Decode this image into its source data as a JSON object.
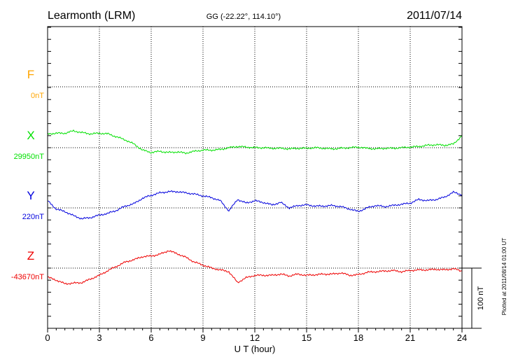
{
  "header": {
    "station": "Learmonth (LRM)",
    "coords": "GG (-22.22°, 114.10°)",
    "date": "2011/07/14"
  },
  "side_note": "Plotted at 2011/08/14 01:00 UT",
  "scale_label": "100 nT",
  "chart_data": {
    "type": "line",
    "xlabel": "U T (hour)",
    "xlim": [
      0,
      24
    ],
    "xticks": [
      "0",
      "3",
      "6",
      "9",
      "12",
      "15",
      "18",
      "21",
      "24"
    ],
    "grid": true,
    "scale_nT": 100,
    "series": [
      {
        "name": "F",
        "baseline": "0nT",
        "color": "#ffa500",
        "values": []
      },
      {
        "name": "X",
        "baseline": "29950nT",
        "color": "#00e000",
        "x": [
          0,
          0.5,
          1,
          1.5,
          2,
          2.5,
          3,
          3.5,
          4,
          4.5,
          5,
          5.5,
          6,
          6.5,
          7,
          7.5,
          8,
          8.5,
          9,
          9.5,
          10,
          10.5,
          11,
          11.5,
          12,
          12.5,
          13,
          13.5,
          14,
          14.5,
          15,
          15.5,
          16,
          16.5,
          17,
          17.5,
          18,
          18.5,
          19,
          19.5,
          20,
          20.5,
          21,
          21.5,
          22,
          22.5,
          23,
          23.5,
          24
        ],
        "values": [
          23,
          24,
          24,
          28,
          25,
          23,
          24,
          23,
          18,
          13,
          6,
          -4,
          -8,
          -6,
          -8,
          -7,
          -9,
          -6,
          -4,
          -4,
          -3,
          0,
          2,
          1,
          0,
          0,
          -1,
          -1,
          -2,
          -1,
          -1,
          0,
          -1,
          -2,
          -1,
          0,
          1,
          -1,
          -2,
          -1,
          -1,
          0,
          1,
          2,
          4,
          5,
          4,
          6,
          20
        ]
      },
      {
        "name": "Y",
        "baseline": "220nT",
        "color": "#0000dd",
        "x": [
          0,
          0.5,
          1,
          1.5,
          2,
          2.5,
          3,
          3.5,
          4,
          4.5,
          5,
          5.5,
          6,
          6.5,
          7,
          7.5,
          8,
          8.5,
          9,
          9.5,
          10,
          10.5,
          11,
          11.5,
          12,
          12.5,
          13,
          13.5,
          14,
          14.5,
          15,
          15.5,
          16,
          16.5,
          17,
          17.5,
          18,
          18.5,
          19,
          19.5,
          20,
          20.5,
          21,
          21.5,
          22,
          22.5,
          23,
          23.5,
          24
        ],
        "values": [
          12,
          -2,
          -6,
          -13,
          -18,
          -16,
          -12,
          -9,
          -4,
          3,
          7,
          16,
          21,
          25,
          27,
          27,
          25,
          23,
          20,
          17,
          12,
          -5,
          14,
          8,
          12,
          9,
          5,
          9,
          0,
          4,
          5,
          3,
          3,
          4,
          2,
          -2,
          -6,
          0,
          4,
          2,
          4,
          6,
          8,
          14,
          12,
          14,
          18,
          26,
          22
        ]
      },
      {
        "name": "Z",
        "baseline": "-43670nT",
        "color": "#ee0000",
        "x": [
          0,
          0.5,
          1,
          1.5,
          2,
          2.5,
          3,
          3.5,
          4,
          4.5,
          5,
          5.5,
          6,
          6.5,
          7,
          7.5,
          8,
          8.5,
          9,
          9.5,
          10,
          10.5,
          11,
          11.5,
          12,
          12.5,
          13,
          13.5,
          14,
          14.5,
          15,
          15.5,
          16,
          16.5,
          17,
          17.5,
          18,
          18.5,
          19,
          19.5,
          20,
          20.5,
          21,
          21.5,
          22,
          22.5,
          23,
          23.5,
          24
        ],
        "values": [
          -15,
          -20,
          -26,
          -25,
          -24,
          -18,
          -12,
          -4,
          3,
          10,
          14,
          19,
          20,
          23,
          29,
          24,
          18,
          10,
          5,
          0,
          -3,
          -6,
          -24,
          -16,
          -12,
          -12,
          -12,
          -10,
          -13,
          -10,
          -12,
          -11,
          -10,
          -10,
          -8,
          -12,
          -11,
          -7,
          -6,
          -5,
          -4,
          -6,
          -4,
          -3,
          -3,
          -2,
          -3,
          -1,
          -5
        ]
      }
    ]
  }
}
